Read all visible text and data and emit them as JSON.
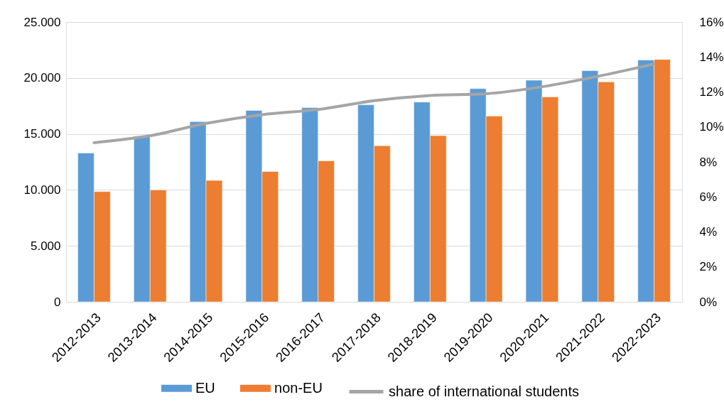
{
  "chart_data": {
    "type": "bar",
    "categories": [
      "2012-2013",
      "2013-2014",
      "2014-2015",
      "2015-2016",
      "2016-2017",
      "2017-2018",
      "2018-2019",
      "2019-2020",
      "2020-2021",
      "2021-2022",
      "2022-2023"
    ],
    "series": [
      {
        "name": "EU",
        "color": "#5b9bd5",
        "values": [
          13300,
          14800,
          16100,
          17100,
          17350,
          17600,
          17850,
          19050,
          19800,
          20650,
          21600
        ]
      },
      {
        "name": "non-EU",
        "color": "#ed7d31",
        "values": [
          9850,
          10000,
          10850,
          11650,
          12600,
          13950,
          14850,
          16600,
          18300,
          19650,
          21650
        ]
      },
      {
        "name": "share of international students",
        "type": "line",
        "axis": "y2",
        "color": "#a5a5a5",
        "values": [
          9.1,
          9.5,
          10.2,
          10.7,
          11.0,
          11.5,
          11.8,
          11.9,
          12.3,
          12.9,
          13.6
        ]
      }
    ],
    "ylim": [
      0,
      25000
    ],
    "yticks": [
      0,
      {
        "value": 5000,
        "label": "5.000"
      },
      {
        "value": 10000,
        "label": "10.000"
      },
      {
        "value": 15000,
        "label": "15.000"
      },
      {
        "value": 20000,
        "label": "20.000"
      },
      {
        "value": 25000,
        "label": "25.000"
      }
    ],
    "y2lim": [
      0,
      16
    ],
    "y2ticks": [
      {
        "value": 0,
        "label": "0%"
      },
      {
        "value": 2,
        "label": "2%"
      },
      {
        "value": 4,
        "label": "4%"
      },
      {
        "value": 6,
        "label": "6%"
      },
      {
        "value": 8,
        "label": "8%"
      },
      {
        "value": 10,
        "label": "10%"
      },
      {
        "value": 12,
        "label": "12%"
      },
      {
        "value": 14,
        "label": "14%"
      },
      {
        "value": 16,
        "label": "16%"
      }
    ],
    "grid": "y",
    "legend": "bottom"
  }
}
